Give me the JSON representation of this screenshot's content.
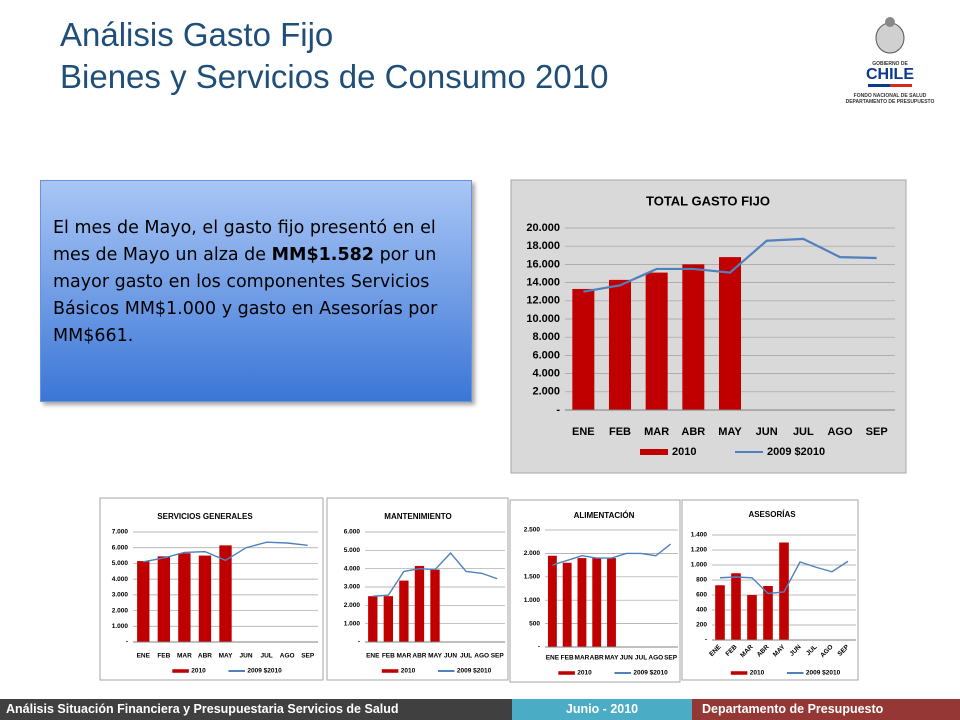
{
  "slide": {
    "title": [
      "Análisis Gasto Fijo",
      "Bienes y Servicios de Consumo 2010"
    ],
    "logo": [
      "GOBIERNO DE",
      "CHILE",
      "FONDO NACIONAL DE SALUD",
      "DEPARTAMENTO DE PRESUPUESTO"
    ],
    "body": [
      "El mes de Mayo, el gasto fijo presentó en el mes de Mayo un alza de ",
      "MM$1.582",
      " por un mayor gasto en los componentes Servicios Básicos MM$1.000 y gasto en Asesorías por MM$661."
    ],
    "footer": [
      "Análisis Situación Financiera y Presupuestaria Servicios de Salud",
      "Junio - 2010",
      "Departamento de Presupuesto"
    ]
  },
  "chart_data": [
    {
      "type": "bar",
      "title": "TOTAL GASTO FIJO",
      "categories": [
        "ENE",
        "FEB",
        "MAR",
        "ABR",
        "MAY",
        "JUN",
        "JUL",
        "AGO",
        "SEP"
      ],
      "series": [
        {
          "name": "2010",
          "type": "bar",
          "color": "#c00000",
          "values": [
            13300,
            14300,
            15100,
            16000,
            16800,
            null,
            null,
            null,
            null
          ]
        },
        {
          "name": "2009 $2010",
          "type": "line",
          "color": "#4f81bd",
          "values": [
            13000,
            13700,
            15500,
            15500,
            15100,
            18600,
            18800,
            16800,
            16700
          ]
        }
      ],
      "ylim": [
        0,
        20000
      ],
      "yticks": [
        {
          "value": 0,
          "label": "-"
        },
        {
          "value": 2000,
          "label": "2.000"
        },
        {
          "value": 4000,
          "label": "4.000"
        },
        {
          "value": 6000,
          "label": "6.000"
        },
        {
          "value": 8000,
          "label": "8.000"
        },
        {
          "value": 10000,
          "label": "10.000"
        },
        {
          "value": 12000,
          "label": "12.000"
        },
        {
          "value": 14000,
          "label": "14.000"
        },
        {
          "value": 16000,
          "label": "16.000"
        },
        {
          "value": 18000,
          "label": "18.000"
        },
        {
          "value": 20000,
          "label": "20.000"
        }
      ],
      "grid": true,
      "legend": "bottom"
    },
    {
      "type": "bar",
      "title": "SERVICIOS GENERALES",
      "categories": [
        "ENE",
        "FEB",
        "MAR",
        "ABR",
        "MAY",
        "JUN",
        "JUL",
        "AGO",
        "SEP"
      ],
      "series": [
        {
          "name": "2010",
          "type": "bar",
          "color": "#c00000",
          "values": [
            5150,
            5450,
            5650,
            5500,
            6150,
            null,
            null,
            null,
            null
          ]
        },
        {
          "name": "2009 $2010",
          "type": "line",
          "color": "#4f81bd",
          "values": [
            5100,
            5350,
            5700,
            5750,
            5200,
            6000,
            6350,
            6300,
            6150
          ]
        }
      ],
      "ylim": [
        0,
        7000
      ],
      "yticks": [
        {
          "value": 0,
          "label": "-"
        },
        {
          "value": 1000,
          "label": "1.000"
        },
        {
          "value": 2000,
          "label": "2.000"
        },
        {
          "value": 3000,
          "label": "3.000"
        },
        {
          "value": 4000,
          "label": "4.000"
        },
        {
          "value": 5000,
          "label": "5.000"
        },
        {
          "value": 6000,
          "label": "6.000"
        },
        {
          "value": 7000,
          "label": "7.000"
        }
      ],
      "grid": true,
      "legend": "bottom"
    },
    {
      "type": "bar",
      "title": "MANTENIMIENTO",
      "categories": [
        "ENE",
        "FEB",
        "MAR",
        "ABR",
        "MAY",
        "JUN",
        "JUL",
        "AGO",
        "SEP"
      ],
      "series": [
        {
          "name": "2010",
          "type": "bar",
          "color": "#c00000",
          "values": [
            2500,
            2500,
            3350,
            4150,
            3950,
            null,
            null,
            null,
            null
          ]
        },
        {
          "name": "2009 $2010",
          "type": "line",
          "color": "#4f81bd",
          "values": [
            2500,
            2550,
            3850,
            4000,
            3950,
            4850,
            3850,
            3750,
            3450
          ]
        }
      ],
      "ylim": [
        0,
        6000
      ],
      "yticks": [
        {
          "value": 0,
          "label": "-"
        },
        {
          "value": 1000,
          "label": "1.000"
        },
        {
          "value": 2000,
          "label": "2.000"
        },
        {
          "value": 3000,
          "label": "3.000"
        },
        {
          "value": 4000,
          "label": "4.000"
        },
        {
          "value": 5000,
          "label": "5.000"
        },
        {
          "value": 6000,
          "label": "6.000"
        }
      ],
      "grid": true,
      "legend": "bottom"
    },
    {
      "type": "bar",
      "title": "ALIMENTACIÓN",
      "categories": [
        "ENE",
        "FEB",
        "MAR",
        "ABR",
        "MAY",
        "JUN",
        "JUL",
        "AGO",
        "SEP"
      ],
      "series": [
        {
          "name": "2010",
          "type": "bar",
          "color": "#c00000",
          "values": [
            1950,
            1800,
            1900,
            1900,
            1900,
            null,
            null,
            null,
            null
          ]
        },
        {
          "name": "2009 $2010",
          "type": "line",
          "color": "#4f81bd",
          "values": [
            1750,
            1850,
            1950,
            1900,
            1900,
            2000,
            2000,
            1950,
            2200
          ]
        }
      ],
      "ylim": [
        0,
        2500
      ],
      "yticks": [
        {
          "value": 0,
          "label": "-"
        },
        500,
        {
          "value": 1000,
          "label": "1.000"
        },
        {
          "value": 1500,
          "label": "1.500"
        },
        {
          "value": 2000,
          "label": "2.000"
        },
        {
          "value": 2500,
          "label": "2.500"
        }
      ],
      "grid": true,
      "legend": "bottom"
    },
    {
      "type": "bar",
      "title": "ASESORÍAS",
      "categories": [
        "ENE",
        "FEB",
        "MAR",
        "ABR",
        "MAY",
        "JUN",
        "JUL",
        "AGO",
        "SEP"
      ],
      "series": [
        {
          "name": "2010",
          "type": "bar",
          "color": "#c00000",
          "values": [
            730,
            890,
            600,
            720,
            1300,
            null,
            null,
            null,
            null
          ]
        },
        {
          "name": "2009 $2010",
          "type": "line",
          "color": "#4f81bd",
          "values": [
            830,
            840,
            830,
            620,
            640,
            1040,
            970,
            910,
            1050
          ]
        }
      ],
      "ylim": [
        0,
        1400
      ],
      "yticks": [
        {
          "value": 0,
          "label": "-"
        },
        200,
        400,
        600,
        800,
        {
          "value": 1000,
          "label": "1.000"
        },
        {
          "value": 1200,
          "label": "1.200"
        },
        {
          "value": 1400,
          "label": "1.400"
        }
      ],
      "grid": true,
      "legend": "bottom"
    }
  ]
}
